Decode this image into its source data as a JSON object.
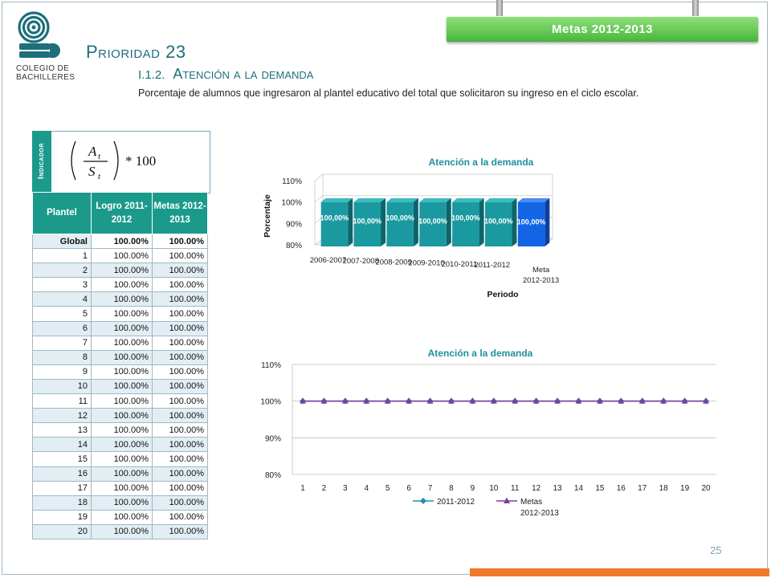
{
  "badge": "Metas 2012-2013",
  "logo": {
    "line1": "COLEGIO DE",
    "line2": "BACHILLERES"
  },
  "priority": "Prioridad 23",
  "section": {
    "number": "I.1.2.",
    "title": "Atención a la demanda"
  },
  "description": "Porcentaje de alumnos que ingresaron al plantel educativo del total que solicitaron su ingreso en el ciclo escolar.",
  "indicator_label": "Indicador",
  "formula": {
    "numerator": "A",
    "denominator": "S",
    "subscript": "t",
    "multiplier": "* 100"
  },
  "table": {
    "headers": {
      "plantel": "Plantel",
      "logro": "Logro 2011-2012",
      "metas": "Metas 2012-2013"
    },
    "rows": [
      {
        "plantel": "Global",
        "logro": "100.00%",
        "metas": "100.00%"
      },
      {
        "plantel": "1",
        "logro": "100.00%",
        "metas": "100.00%"
      },
      {
        "plantel": "2",
        "logro": "100.00%",
        "metas": "100.00%"
      },
      {
        "plantel": "3",
        "logro": "100.00%",
        "metas": "100.00%"
      },
      {
        "plantel": "4",
        "logro": "100.00%",
        "metas": "100.00%"
      },
      {
        "plantel": "5",
        "logro": "100.00%",
        "metas": "100.00%"
      },
      {
        "plantel": "6",
        "logro": "100.00%",
        "metas": "100.00%"
      },
      {
        "plantel": "7",
        "logro": "100.00%",
        "metas": "100.00%"
      },
      {
        "plantel": "8",
        "logro": "100.00%",
        "metas": "100.00%"
      },
      {
        "plantel": "9",
        "logro": "100.00%",
        "metas": "100.00%"
      },
      {
        "plantel": "10",
        "logro": "100.00%",
        "metas": "100.00%"
      },
      {
        "plantel": "11",
        "logro": "100.00%",
        "metas": "100.00%"
      },
      {
        "plantel": "12",
        "logro": "100.00%",
        "metas": "100.00%"
      },
      {
        "plantel": "13",
        "logro": "100.00%",
        "metas": "100.00%"
      },
      {
        "plantel": "14",
        "logro": "100.00%",
        "metas": "100.00%"
      },
      {
        "plantel": "15",
        "logro": "100.00%",
        "metas": "100.00%"
      },
      {
        "plantel": "16",
        "logro": "100.00%",
        "metas": "100.00%"
      },
      {
        "plantel": "17",
        "logro": "100.00%",
        "metas": "100.00%"
      },
      {
        "plantel": "18",
        "logro": "100.00%",
        "metas": "100.00%"
      },
      {
        "plantel": "19",
        "logro": "100.00%",
        "metas": "100.00%"
      },
      {
        "plantel": "20",
        "logro": "100.00%",
        "metas": "100.00%"
      }
    ]
  },
  "page_number": "25",
  "colors": {
    "teal": "#1b9a8c",
    "bar_teal": "#1a9aa0",
    "bar_meta": "#1464e6",
    "series1": "#1f8fb0",
    "series2": "#7a3fa0",
    "orange": "#ee7a2a",
    "green_badge": "#47b63c"
  },
  "chart_data": [
    {
      "type": "bar",
      "title": "Atención a la demanda",
      "xlabel": "Periodo",
      "ylabel": "Porcentaje",
      "categories": [
        "2006-2007",
        "2007-2008",
        "2008-2009",
        "2009-2010",
        "2010-2011",
        "2011-2012",
        "Meta 2012-2013"
      ],
      "values": [
        100,
        100,
        100,
        100,
        100,
        100,
        100
      ],
      "data_labels": [
        "100,00%",
        "100,00%",
        "100,00%",
        "100,00%",
        "100,00%",
        "100,00%",
        "100,00%"
      ],
      "yticks": [
        "80%",
        "90%",
        "100%",
        "110%"
      ],
      "ylim": [
        80,
        110
      ],
      "three_d": true,
      "grid": true
    },
    {
      "type": "line",
      "title": "Atención a la demanda",
      "x": [
        1,
        2,
        3,
        4,
        5,
        6,
        7,
        8,
        9,
        10,
        11,
        12,
        13,
        14,
        15,
        16,
        17,
        18,
        19,
        20
      ],
      "series": [
        {
          "name": "2011-2012",
          "values": [
            100,
            100,
            100,
            100,
            100,
            100,
            100,
            100,
            100,
            100,
            100,
            100,
            100,
            100,
            100,
            100,
            100,
            100,
            100,
            100
          ],
          "marker": "diamond"
        },
        {
          "name": "Metas 2012-2013",
          "values": [
            100,
            100,
            100,
            100,
            100,
            100,
            100,
            100,
            100,
            100,
            100,
            100,
            100,
            100,
            100,
            100,
            100,
            100,
            100,
            100
          ],
          "marker": "triangle"
        }
      ],
      "yticks": [
        "80%",
        "90%",
        "100%",
        "110%"
      ],
      "ylim": [
        80,
        110
      ],
      "grid": true,
      "legend": "bottom"
    }
  ]
}
